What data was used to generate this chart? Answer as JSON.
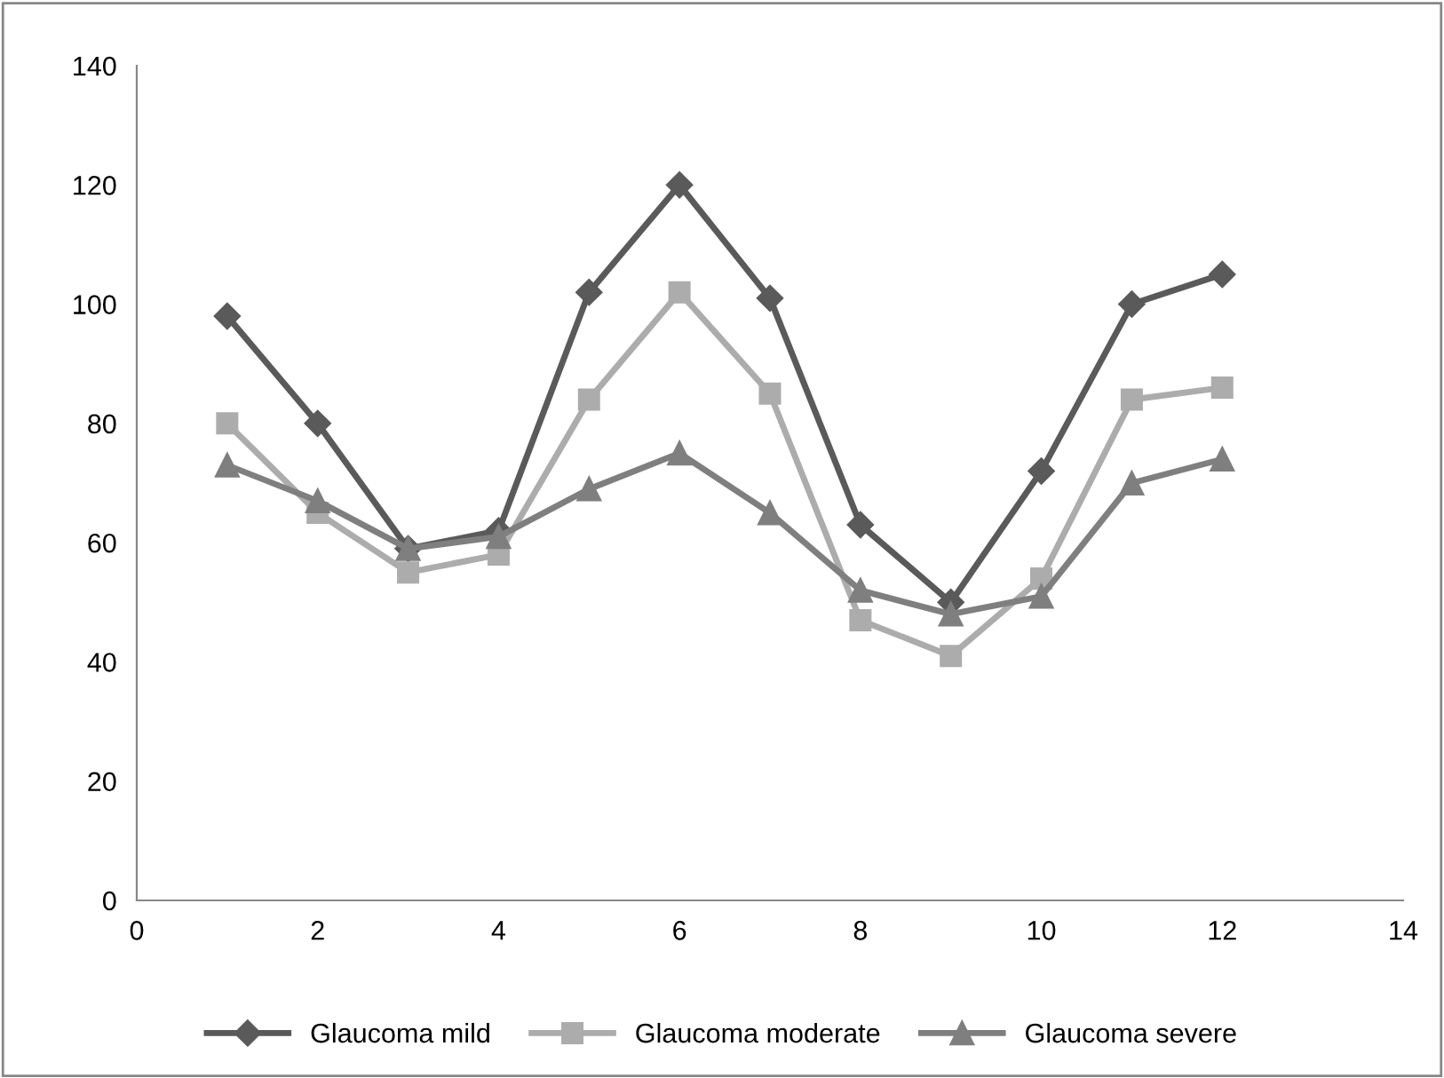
{
  "chart_data": {
    "type": "line",
    "x": [
      1,
      2,
      3,
      4,
      5,
      6,
      7,
      8,
      9,
      10,
      11,
      12
    ],
    "series": [
      {
        "name": "Glaucoma mild",
        "color": "#5a5a5a",
        "marker": "diamond",
        "values": [
          98,
          80,
          59,
          62,
          102,
          120,
          101,
          63,
          50,
          72,
          100,
          105
        ]
      },
      {
        "name": "Glaucoma moderate",
        "color": "#acacac",
        "marker": "square",
        "values": [
          80,
          65,
          55,
          58,
          84,
          102,
          85,
          47,
          41,
          54,
          84,
          86
        ]
      },
      {
        "name": "Glaucoma severe",
        "color": "#7f7f7f",
        "marker": "triangle",
        "values": [
          73,
          67,
          59,
          61,
          69,
          75,
          65,
          52,
          48,
          51,
          70,
          74
        ]
      }
    ],
    "xlim": [
      0,
      14
    ],
    "xticks": [
      0,
      2,
      4,
      6,
      8,
      10,
      12,
      14
    ],
    "ylim": [
      0,
      140
    ],
    "yticks": [
      0,
      20,
      40,
      60,
      80,
      100,
      120,
      140
    ],
    "grid": false,
    "legend": "bottom",
    "line_style": "solid"
  }
}
